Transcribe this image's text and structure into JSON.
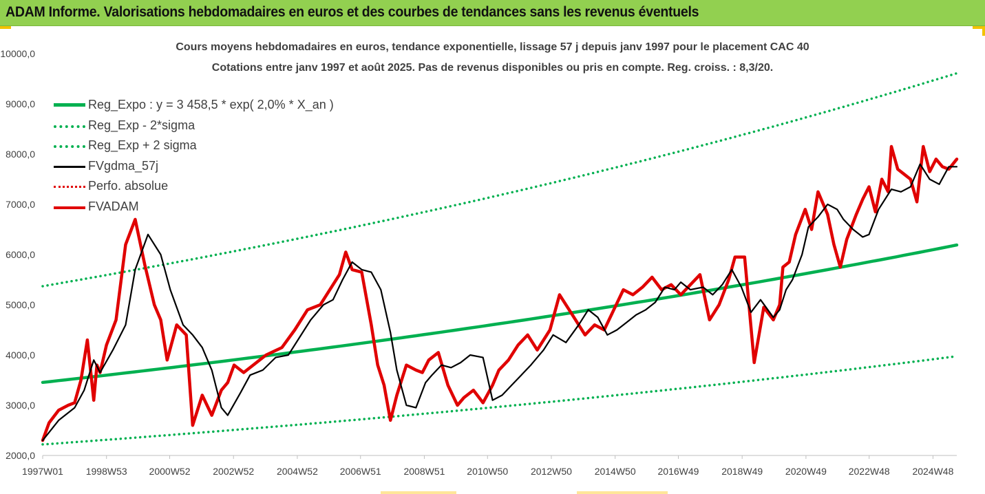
{
  "banner": {
    "title": "ADAM Informe. Valorisations hebdomadaires en euros et des courbes de tendances sans les revenus éventuels"
  },
  "chart_data": {
    "type": "line",
    "title": "Cours moyens hebdomadaires en euros, tendance exponentielle, lissage 57 j depuis janv 1997 pour le placement CAC 40",
    "subtitle": "Cotations entre janv 1997 et août 2025.  Pas de revenus disponibles ou pris en compte. Reg. croiss. : 8,3/20.",
    "xlabel": "",
    "ylabel": "",
    "ylim": [
      2000,
      10000
    ],
    "xlim": [
      1997.0,
      2025.65
    ],
    "grid": false,
    "legend_position": "top-left",
    "y_ticks": [
      "2000,0",
      "3000,0",
      "4000,0",
      "5000,0",
      "6000,0",
      "7000,0",
      "8000,0",
      "9000,0",
      "10000,0"
    ],
    "x_ticks": [
      "1997W01",
      "1998W53",
      "2000W52",
      "2002W52",
      "2004W52",
      "2006W51",
      "2008W51",
      "2010W50",
      "2012W50",
      "2014W50",
      "2016W49",
      "2018W49",
      "2020W49",
      "2022W48",
      "2024W48"
    ],
    "series": [
      {
        "name": "Reg_Expo : y = 3 458,5 * exp( 2,0% *  X_an )",
        "color": "#00b050",
        "style": "solid-thick",
        "x": [
          1997.0,
          2025.65
        ],
        "y": [
          3455,
          6190
        ]
      },
      {
        "name": "Reg_Exp - 2*sigma",
        "color": "#00b050",
        "style": "dotted",
        "x": [
          1997.0,
          2025.65
        ],
        "y": [
          2220,
          3975
        ]
      },
      {
        "name": "Reg_Exp + 2 sigma",
        "color": "#00b050",
        "style": "dotted",
        "x": [
          1997.0,
          2025.65
        ],
        "y": [
          5370,
          9610
        ]
      },
      {
        "name": "FVgdma_57j",
        "color": "#000000",
        "style": "solid",
        "x": [
          1997.0,
          1997.5,
          1998.0,
          1998.3,
          1998.6,
          1998.8,
          1999.2,
          1999.6,
          1999.9,
          2000.3,
          2000.7,
          2001.0,
          2001.4,
          2001.7,
          2002.0,
          2002.3,
          2002.6,
          2002.8,
          2003.2,
          2003.5,
          2003.9,
          2004.3,
          2004.7,
          2005.0,
          2005.4,
          2005.8,
          2006.1,
          2006.4,
          2006.7,
          2007.0,
          2007.3,
          2007.6,
          2007.9,
          2008.1,
          2008.4,
          2008.7,
          2009.0,
          2009.2,
          2009.5,
          2009.8,
          2010.1,
          2010.4,
          2010.8,
          2011.1,
          2011.4,
          2011.7,
          2012.0,
          2012.3,
          2012.7,
          2013.0,
          2013.4,
          2013.8,
          2014.1,
          2014.4,
          2014.7,
          2015.0,
          2015.3,
          2015.6,
          2015.9,
          2016.2,
          2016.5,
          2016.8,
          2017.0,
          2017.3,
          2017.7,
          2018.0,
          2018.3,
          2018.6,
          2018.9,
          2019.2,
          2019.5,
          2019.9,
          2020.1,
          2020.3,
          2020.5,
          2020.8,
          2021.0,
          2021.3,
          2021.6,
          2021.9,
          2022.1,
          2022.4,
          2022.7,
          2022.9,
          2023.2,
          2023.6,
          2023.9,
          2024.2,
          2024.5,
          2024.8,
          2025.1,
          2025.4,
          2025.65
        ],
        "y": [
          2300,
          2700,
          2950,
          3300,
          3900,
          3650,
          4100,
          4600,
          5700,
          6400,
          6000,
          5300,
          4600,
          4400,
          4150,
          3700,
          2950,
          2800,
          3250,
          3600,
          3700,
          3950,
          4000,
          4300,
          4700,
          5000,
          5100,
          5500,
          5850,
          5700,
          5650,
          5300,
          4450,
          3700,
          3000,
          2950,
          3450,
          3600,
          3800,
          3750,
          3850,
          4000,
          3950,
          3100,
          3200,
          3400,
          3600,
          3800,
          4100,
          4400,
          4250,
          4600,
          4900,
          4750,
          4400,
          4500,
          4650,
          4800,
          4900,
          5050,
          5350,
          5300,
          5450,
          5300,
          5350,
          5200,
          5400,
          5700,
          5350,
          4850,
          5100,
          4750,
          4900,
          5300,
          5500,
          6000,
          6550,
          6750,
          7000,
          6900,
          6700,
          6500,
          6350,
          6400,
          6900,
          7300,
          7250,
          7350,
          7800,
          7500,
          7400,
          7750,
          7750
        ]
      },
      {
        "name": "Perfo. absolue",
        "color": "#e00000",
        "style": "dotted",
        "x": [],
        "y": []
      },
      {
        "name": "FVADAM",
        "color": "#e00000",
        "style": "solid-thick",
        "x": [
          1997.0,
          1997.2,
          1997.5,
          1997.8,
          1998.0,
          1998.2,
          1998.4,
          1998.6,
          1998.7,
          1998.8,
          1999.0,
          1999.3,
          1999.6,
          1999.9,
          2000.2,
          2000.5,
          2000.7,
          2000.9,
          2001.2,
          2001.5,
          2001.7,
          2002.0,
          2002.3,
          2002.6,
          2002.8,
          2003.0,
          2003.3,
          2003.6,
          2004.0,
          2004.5,
          2004.9,
          2005.3,
          2005.7,
          2006.0,
          2006.3,
          2006.5,
          2006.7,
          2007.0,
          2007.3,
          2007.5,
          2007.7,
          2007.9,
          2008.1,
          2008.4,
          2008.7,
          2008.9,
          2009.1,
          2009.4,
          2009.7,
          2010.0,
          2010.2,
          2010.5,
          2010.8,
          2011.1,
          2011.3,
          2011.6,
          2011.9,
          2012.2,
          2012.5,
          2012.9,
          2013.2,
          2013.6,
          2014.0,
          2014.3,
          2014.6,
          2014.9,
          2015.2,
          2015.5,
          2015.8,
          2016.1,
          2016.4,
          2016.7,
          2017.0,
          2017.3,
          2017.6,
          2017.9,
          2018.2,
          2018.5,
          2018.7,
          2019.0,
          2019.3,
          2019.6,
          2019.9,
          2020.1,
          2020.2,
          2020.4,
          2020.6,
          2020.9,
          2021.1,
          2021.3,
          2021.6,
          2021.8,
          2022.0,
          2022.2,
          2022.5,
          2022.7,
          2022.9,
          2023.1,
          2023.3,
          2023.5,
          2023.6,
          2023.8,
          2024.0,
          2024.2,
          2024.4,
          2024.6,
          2024.8,
          2025.0,
          2025.2,
          2025.4,
          2025.65
        ],
        "y": [
          2300,
          2650,
          2900,
          3000,
          3050,
          3500,
          4300,
          3100,
          3800,
          3650,
          4200,
          4700,
          6200,
          6700,
          5800,
          5000,
          4700,
          3900,
          4600,
          4400,
          2600,
          3200,
          2800,
          3300,
          3450,
          3800,
          3650,
          3800,
          4000,
          4150,
          4500,
          4900,
          5000,
          5300,
          5600,
          6050,
          5700,
          5650,
          4600,
          3800,
          3400,
          2700,
          3200,
          3800,
          3700,
          3650,
          3900,
          4050,
          3400,
          3000,
          3150,
          3300,
          3050,
          3400,
          3700,
          3900,
          4200,
          4400,
          4100,
          4500,
          5200,
          4800,
          4400,
          4600,
          4500,
          4900,
          5300,
          5200,
          5350,
          5550,
          5300,
          5400,
          5200,
          5400,
          5600,
          4700,
          5000,
          5500,
          5950,
          5950,
          3850,
          4950,
          4700,
          5000,
          5750,
          5850,
          6400,
          6900,
          6500,
          7250,
          6800,
          6200,
          5750,
          6300,
          6800,
          7100,
          7350,
          6850,
          7500,
          7250,
          8150,
          7700,
          7600,
          7500,
          7050,
          8150,
          7650,
          7900,
          7750,
          7700,
          7900
        ]
      }
    ]
  }
}
